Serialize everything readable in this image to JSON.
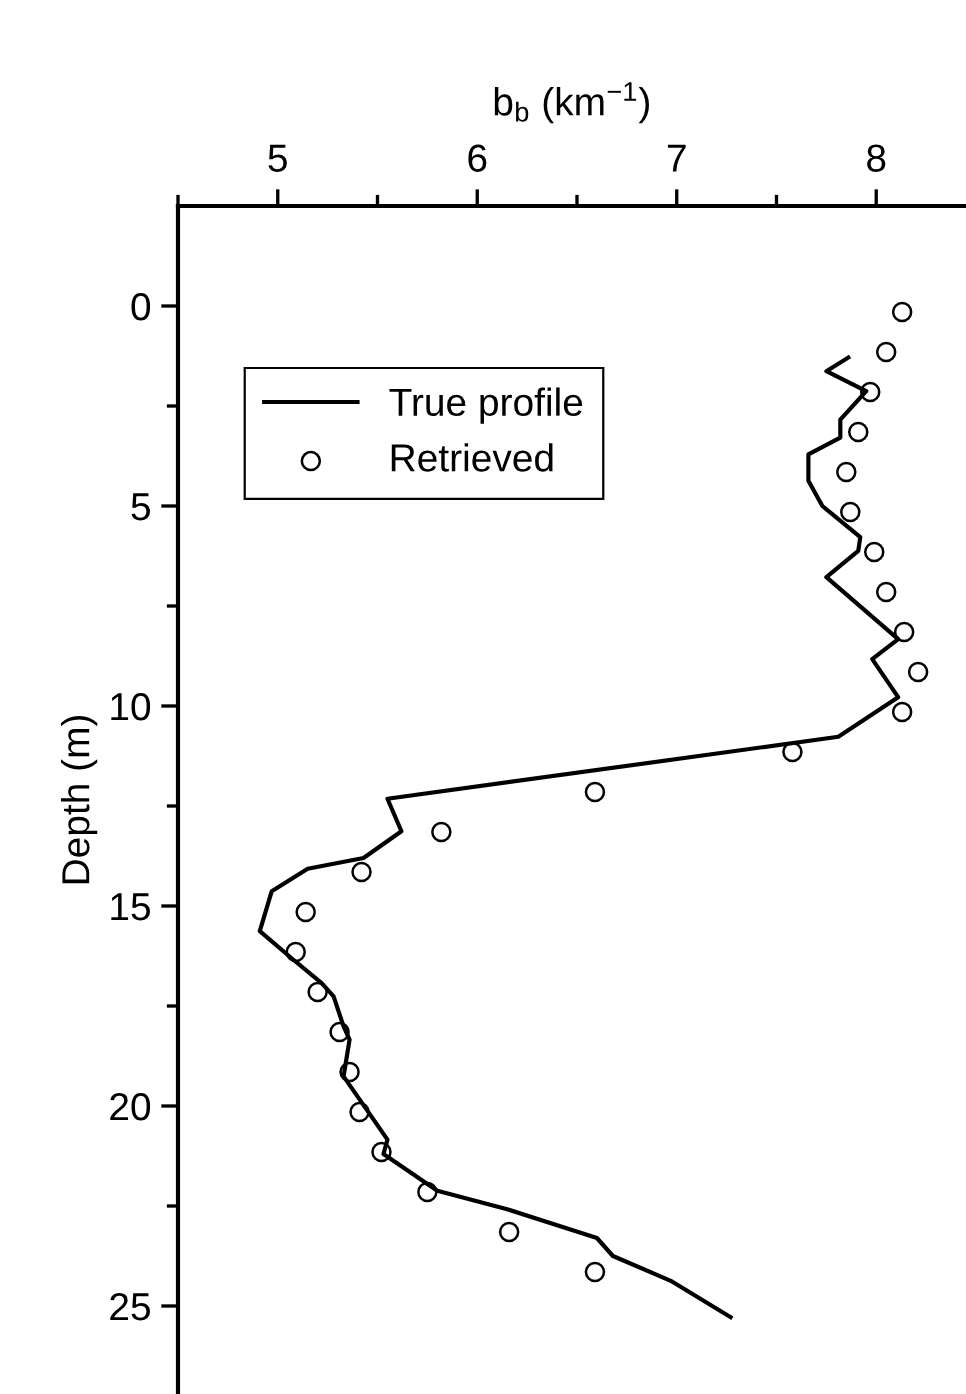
{
  "chart_data": {
    "type": "line",
    "xlabel": "b$_{b}$ (km$^{−1}$)",
    "ylabel": "Depth (m)",
    "xlim": [
      4.5,
      8.45
    ],
    "ylim": [
      27.2,
      -2.5
    ],
    "xticks": [
      {
        "value": 4.5,
        "label": null
      },
      5,
      {
        "value": 5.5,
        "label": null
      },
      6,
      {
        "value": 6.5,
        "label": null
      },
      7,
      {
        "value": 7.5,
        "label": null
      },
      8
    ],
    "yticks": [
      0,
      {
        "value": 2.5,
        "label": null
      },
      5,
      {
        "value": 7.5,
        "label": null
      },
      10,
      {
        "value": 12.5,
        "label": null
      },
      15,
      {
        "value": 17.5,
        "label": null
      },
      20,
      {
        "value": 22.5,
        "label": null
      },
      25
    ],
    "grid": false,
    "legend": "top left",
    "series": [
      {
        "name": "True profile",
        "color": "#000000",
        "marker": "none",
        "line_style": "solid",
        "values": [
          1.29,
          1.63,
          2.13,
          2.84,
          3.29,
          3.71,
          4.37,
          5.0,
          5.78,
          6.12,
          6.78,
          8.33,
          8.83,
          9.78,
          10.77,
          12.32,
          13.13,
          13.8,
          14.07,
          14.63,
          15.63,
          16.35,
          16.93,
          17.26,
          18.01,
          18.34,
          19.26,
          20.84,
          21.2,
          22.12,
          22.58,
          23.3,
          23.75,
          24.37,
          25.28
        ],
        "x": [
          7.86,
          7.75,
          7.95,
          7.82,
          7.82,
          7.66,
          7.66,
          7.73,
          7.92,
          7.91,
          7.75,
          8.11,
          7.98,
          8.11,
          7.81,
          5.55,
          5.62,
          5.43,
          5.15,
          4.97,
          4.91,
          5.08,
          5.22,
          5.28,
          5.33,
          5.36,
          5.33,
          5.55,
          5.53,
          5.8,
          6.15,
          6.6,
          6.68,
          6.97,
          7.27
        ]
      },
      {
        "name": "Retrieved",
        "type": "scatter",
        "color": "#000000",
        "marker": "circle",
        "values": [
          0.15,
          1.15,
          2.15,
          3.15,
          4.15,
          5.15,
          6.15,
          7.15,
          8.15,
          9.15,
          10.15,
          11.15,
          12.15,
          13.15,
          14.15,
          15.15,
          16.15,
          17.15,
          18.15,
          19.15,
          20.15,
          21.15,
          22.15,
          23.15,
          24.15
        ],
        "x": [
          8.13,
          8.05,
          7.97,
          7.91,
          7.85,
          7.87,
          7.99,
          8.05,
          8.14,
          8.21,
          8.13,
          7.58,
          6.59,
          5.82,
          5.42,
          5.14,
          5.09,
          5.2,
          5.31,
          5.36,
          5.41,
          5.52,
          5.75,
          6.16,
          6.59
        ]
      }
    ]
  }
}
